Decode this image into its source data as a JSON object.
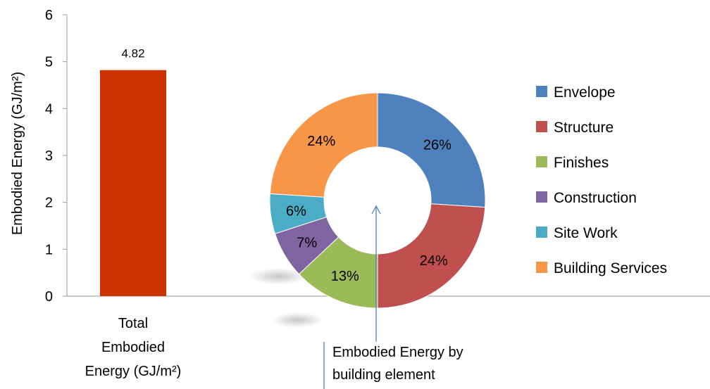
{
  "chart_data": [
    {
      "type": "bar",
      "categories": [
        "Total Embodied Energy (GJ/m²)"
      ],
      "category_label_lines": [
        "Total",
        "Embodied",
        "Energy (GJ/m²)"
      ],
      "values": [
        4.82
      ],
      "data_labels": [
        "4.82"
      ],
      "ylabel": "Embodied Energy (GJ/m²)",
      "ylim": [
        0,
        6
      ],
      "yticks": [
        "0",
        "1",
        "2",
        "3",
        "4",
        "5",
        "6"
      ],
      "color": "#cc3300",
      "grid": false
    },
    {
      "type": "pie",
      "style": "donut",
      "slices": [
        {
          "label": "Envelope",
          "value": 26,
          "display": "26%",
          "color": "#4f81bd"
        },
        {
          "label": "Structure",
          "value": 24,
          "display": "24%",
          "color": "#c0504d"
        },
        {
          "label": "Finishes",
          "value": 13,
          "display": "13%",
          "color": "#9bbb59"
        },
        {
          "label": "Construction",
          "value": 7,
          "display": "7%",
          "color": "#8064a2"
        },
        {
          "label": "Site Work",
          "value": 6,
          "display": "6%",
          "color": "#4bacc6"
        },
        {
          "label": "Building Services",
          "value": 24,
          "display": "24%",
          "color": "#f79646"
        }
      ],
      "legend_position": "right",
      "annotation": {
        "lines": [
          "Embodied Energy by",
          "building element"
        ],
        "arrow_color": "#4f81bd"
      }
    }
  ]
}
